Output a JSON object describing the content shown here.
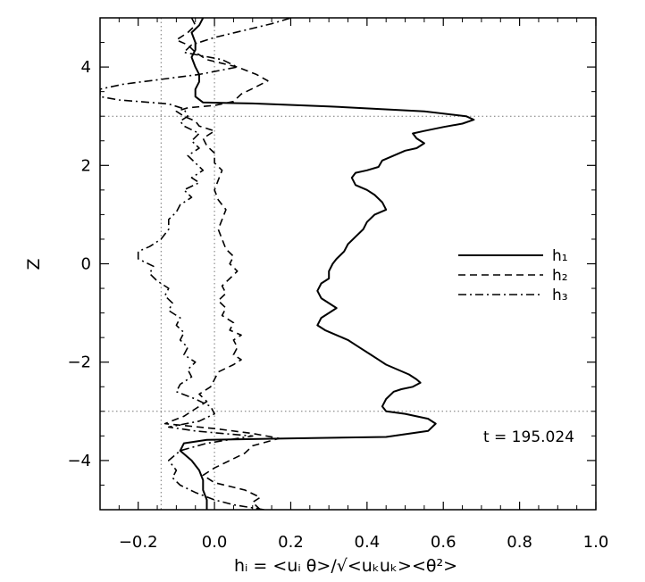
{
  "chart_data": {
    "type": "line",
    "title": "",
    "xlabel": "hᵢ = <uᵢ θ>/√<uₖuₖ><θ²>",
    "ylabel": "Z",
    "xlim": [
      -0.3,
      1.0
    ],
    "ylim": [
      -5,
      5
    ],
    "x_ticks": [
      -0.2,
      0.0,
      0.2,
      0.4,
      0.6,
      0.8,
      1.0
    ],
    "x_tick_labels": [
      "−0.2",
      "0.0",
      "0.2",
      "0.4",
      "0.6",
      "0.8",
      "1.0"
    ],
    "y_ticks": [
      -4,
      -2,
      0,
      2,
      4
    ],
    "y_tick_labels": [
      "−4",
      "−2",
      "0",
      "2",
      "4"
    ],
    "grid": false,
    "legend_position": "right",
    "reference_lines": {
      "vertical_x": [
        -0.14,
        0.0
      ],
      "horizontal_y": [
        3.0,
        -3.0
      ]
    },
    "annotation": "t = 195.024",
    "series": [
      {
        "name": "h₁",
        "style": "solid",
        "points": [
          [
            -0.02,
            -5.0
          ],
          [
            -0.02,
            -4.8
          ],
          [
            -0.03,
            -4.6
          ],
          [
            -0.03,
            -4.4
          ],
          [
            -0.04,
            -4.2
          ],
          [
            -0.06,
            -4.0
          ],
          [
            -0.09,
            -3.8
          ],
          [
            -0.08,
            -3.65
          ],
          [
            -0.02,
            -3.58
          ],
          [
            0.2,
            -3.55
          ],
          [
            0.45,
            -3.52
          ],
          [
            0.56,
            -3.4
          ],
          [
            0.58,
            -3.25
          ],
          [
            0.56,
            -3.15
          ],
          [
            0.5,
            -3.05
          ],
          [
            0.45,
            -3.0
          ],
          [
            0.44,
            -2.9
          ],
          [
            0.45,
            -2.75
          ],
          [
            0.47,
            -2.6
          ],
          [
            0.49,
            -2.55
          ],
          [
            0.52,
            -2.5
          ],
          [
            0.54,
            -2.42
          ],
          [
            0.53,
            -2.35
          ],
          [
            0.51,
            -2.25
          ],
          [
            0.48,
            -2.15
          ],
          [
            0.45,
            -2.05
          ],
          [
            0.43,
            -1.95
          ],
          [
            0.41,
            -1.85
          ],
          [
            0.38,
            -1.7
          ],
          [
            0.35,
            -1.55
          ],
          [
            0.32,
            -1.45
          ],
          [
            0.29,
            -1.35
          ],
          [
            0.27,
            -1.25
          ],
          [
            0.28,
            -1.1
          ],
          [
            0.3,
            -1.0
          ],
          [
            0.32,
            -0.9
          ],
          [
            0.3,
            -0.8
          ],
          [
            0.28,
            -0.7
          ],
          [
            0.27,
            -0.55
          ],
          [
            0.28,
            -0.4
          ],
          [
            0.3,
            -0.3
          ],
          [
            0.3,
            -0.15
          ],
          [
            0.31,
            0.0
          ],
          [
            0.32,
            0.1
          ],
          [
            0.34,
            0.25
          ],
          [
            0.35,
            0.4
          ],
          [
            0.37,
            0.55
          ],
          [
            0.39,
            0.7
          ],
          [
            0.4,
            0.85
          ],
          [
            0.42,
            1.0
          ],
          [
            0.45,
            1.1
          ],
          [
            0.44,
            1.25
          ],
          [
            0.42,
            1.4
          ],
          [
            0.4,
            1.5
          ],
          [
            0.37,
            1.6
          ],
          [
            0.36,
            1.75
          ],
          [
            0.37,
            1.85
          ],
          [
            0.4,
            1.9
          ],
          [
            0.43,
            1.97
          ],
          [
            0.44,
            2.1
          ],
          [
            0.47,
            2.2
          ],
          [
            0.5,
            2.3
          ],
          [
            0.53,
            2.35
          ],
          [
            0.55,
            2.45
          ],
          [
            0.53,
            2.55
          ],
          [
            0.52,
            2.65
          ],
          [
            0.55,
            2.7
          ],
          [
            0.6,
            2.78
          ],
          [
            0.65,
            2.85
          ],
          [
            0.68,
            2.93
          ],
          [
            0.66,
            3.0
          ],
          [
            0.55,
            3.1
          ],
          [
            0.3,
            3.2
          ],
          [
            0.1,
            3.26
          ],
          [
            -0.03,
            3.28
          ],
          [
            -0.05,
            3.4
          ],
          [
            -0.05,
            3.55
          ],
          [
            -0.04,
            3.7
          ],
          [
            -0.04,
            3.85
          ],
          [
            -0.05,
            4.0
          ],
          [
            -0.06,
            4.2
          ],
          [
            -0.05,
            4.35
          ],
          [
            -0.05,
            4.5
          ],
          [
            -0.06,
            4.7
          ],
          [
            -0.04,
            4.85
          ],
          [
            -0.03,
            5.0
          ]
        ]
      },
      {
        "name": "h₂",
        "style": "dashed",
        "points": [
          [
            0.12,
            -5.0
          ],
          [
            0.1,
            -4.85
          ],
          [
            0.12,
            -4.75
          ],
          [
            0.08,
            -4.6
          ],
          [
            0.0,
            -4.45
          ],
          [
            -0.03,
            -4.3
          ],
          [
            0.0,
            -4.15
          ],
          [
            0.04,
            -4.0
          ],
          [
            0.08,
            -3.85
          ],
          [
            0.1,
            -3.7
          ],
          [
            0.17,
            -3.55
          ],
          [
            0.1,
            -3.45
          ],
          [
            0.0,
            -3.35
          ],
          [
            -0.13,
            -3.25
          ],
          [
            -0.08,
            -3.1
          ],
          [
            -0.05,
            -2.95
          ],
          [
            -0.02,
            -2.8
          ],
          [
            -0.04,
            -2.65
          ],
          [
            -0.01,
            -2.5
          ],
          [
            0.0,
            -2.35
          ],
          [
            0.01,
            -2.2
          ],
          [
            0.05,
            -2.05
          ],
          [
            0.07,
            -1.95
          ],
          [
            0.05,
            -1.85
          ],
          [
            0.06,
            -1.7
          ],
          [
            0.05,
            -1.55
          ],
          [
            0.07,
            -1.45
          ],
          [
            0.04,
            -1.35
          ],
          [
            0.05,
            -1.2
          ],
          [
            0.02,
            -1.05
          ],
          [
            0.03,
            -0.9
          ],
          [
            0.01,
            -0.75
          ],
          [
            0.03,
            -0.6
          ],
          [
            0.02,
            -0.45
          ],
          [
            0.04,
            -0.3
          ],
          [
            0.06,
            -0.15
          ],
          [
            0.04,
            0.0
          ],
          [
            0.05,
            0.15
          ],
          [
            0.03,
            0.3
          ],
          [
            0.02,
            0.5
          ],
          [
            0.01,
            0.7
          ],
          [
            0.02,
            0.9
          ],
          [
            0.03,
            1.1
          ],
          [
            0.01,
            1.3
          ],
          [
            0.0,
            1.5
          ],
          [
            0.01,
            1.7
          ],
          [
            0.02,
            1.9
          ],
          [
            0.0,
            2.05
          ],
          [
            0.0,
            2.25
          ],
          [
            -0.02,
            2.4
          ],
          [
            -0.03,
            2.55
          ],
          [
            0.0,
            2.7
          ],
          [
            -0.04,
            2.8
          ],
          [
            -0.05,
            2.9
          ],
          [
            -0.08,
            3.0
          ],
          [
            -0.1,
            3.1
          ],
          [
            -0.07,
            3.17
          ],
          [
            0.0,
            3.22
          ],
          [
            0.05,
            3.3
          ],
          [
            0.07,
            3.45
          ],
          [
            0.11,
            3.6
          ],
          [
            0.14,
            3.72
          ],
          [
            0.11,
            3.85
          ],
          [
            0.06,
            4.0
          ],
          [
            -0.02,
            4.15
          ],
          [
            -0.05,
            4.3
          ],
          [
            -0.07,
            4.45
          ],
          [
            -0.1,
            4.55
          ],
          [
            -0.07,
            4.7
          ],
          [
            -0.05,
            4.85
          ],
          [
            -0.06,
            5.0
          ]
        ]
      },
      {
        "name": "h₃",
        "style": "dashdot",
        "points": [
          [
            0.13,
            -5.0
          ],
          [
            0.05,
            -4.9
          ],
          [
            0.0,
            -4.8
          ],
          [
            -0.05,
            -4.65
          ],
          [
            -0.09,
            -4.5
          ],
          [
            -0.11,
            -4.35
          ],
          [
            -0.1,
            -4.2
          ],
          [
            -0.12,
            -4.0
          ],
          [
            -0.09,
            -3.8
          ],
          [
            -0.02,
            -3.65
          ],
          [
            0.1,
            -3.5
          ],
          [
            0.02,
            -3.45
          ],
          [
            -0.05,
            -3.4
          ],
          [
            -0.12,
            -3.32
          ],
          [
            -0.04,
            -3.2
          ],
          [
            0.0,
            -3.05
          ],
          [
            -0.01,
            -2.9
          ],
          [
            -0.05,
            -2.75
          ],
          [
            -0.1,
            -2.6
          ],
          [
            -0.09,
            -2.45
          ],
          [
            -0.06,
            -2.3
          ],
          [
            -0.07,
            -2.15
          ],
          [
            -0.05,
            -2.0
          ],
          [
            -0.08,
            -1.85
          ],
          [
            -0.07,
            -1.7
          ],
          [
            -0.09,
            -1.55
          ],
          [
            -0.08,
            -1.4
          ],
          [
            -0.1,
            -1.25
          ],
          [
            -0.09,
            -1.1
          ],
          [
            -0.12,
            -0.95
          ],
          [
            -0.11,
            -0.8
          ],
          [
            -0.13,
            -0.65
          ],
          [
            -0.12,
            -0.5
          ],
          [
            -0.15,
            -0.35
          ],
          [
            -0.17,
            -0.2
          ],
          [
            -0.16,
            -0.05
          ],
          [
            -0.2,
            0.1
          ],
          [
            -0.2,
            0.25
          ],
          [
            -0.17,
            0.35
          ],
          [
            -0.14,
            0.5
          ],
          [
            -0.12,
            0.7
          ],
          [
            -0.12,
            0.9
          ],
          [
            -0.1,
            1.05
          ],
          [
            -0.09,
            1.2
          ],
          [
            -0.06,
            1.35
          ],
          [
            -0.08,
            1.5
          ],
          [
            -0.04,
            1.65
          ],
          [
            -0.06,
            1.75
          ],
          [
            -0.03,
            1.9
          ],
          [
            -0.05,
            2.05
          ],
          [
            -0.07,
            2.2
          ],
          [
            -0.04,
            2.35
          ],
          [
            -0.06,
            2.5
          ],
          [
            -0.04,
            2.65
          ],
          [
            -0.08,
            2.8
          ],
          [
            -0.09,
            2.9
          ],
          [
            -0.07,
            3.0
          ],
          [
            -0.08,
            3.15
          ],
          [
            -0.12,
            3.25
          ],
          [
            -0.25,
            3.33
          ],
          [
            -0.3,
            3.4
          ],
          [
            -0.3,
            3.55
          ],
          [
            -0.24,
            3.65
          ],
          [
            -0.14,
            3.75
          ],
          [
            -0.04,
            3.85
          ],
          [
            0.06,
            4.0
          ],
          [
            0.02,
            4.15
          ],
          [
            -0.08,
            4.3
          ],
          [
            -0.06,
            4.45
          ],
          [
            0.0,
            4.6
          ],
          [
            0.08,
            4.75
          ],
          [
            0.15,
            4.88
          ],
          [
            0.2,
            5.0
          ]
        ]
      }
    ]
  }
}
